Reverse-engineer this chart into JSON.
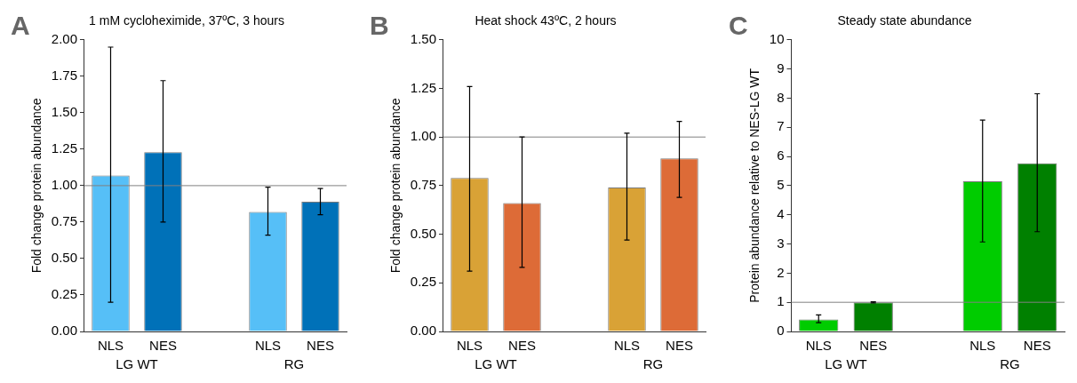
{
  "chart_data": [
    {
      "type": "bar",
      "title": "1 mM cycloheximide, 37ºC, 3 hours",
      "ylabel": "Fold change protein abundance",
      "categories": [
        "NLS",
        "NES",
        null,
        "NLS",
        "NES"
      ],
      "values": [
        1.07,
        1.23,
        null,
        0.82,
        0.89
      ],
      "colors": [
        "#56bff7",
        "#0071b8",
        null,
        "#56bff7",
        "#0071b8"
      ],
      "errors": [
        [
          0.2,
          1.95
        ],
        [
          0.75,
          1.72
        ],
        null,
        [
          0.66,
          0.99
        ],
        [
          0.8,
          0.98
        ]
      ],
      "ylim": [
        0,
        2
      ],
      "yticks": [
        {
          "value": 0,
          "label": "0.00"
        },
        {
          "value": 0.25,
          "label": "0.25"
        },
        {
          "value": 0.5,
          "label": "0.50"
        },
        {
          "value": 0.75,
          "label": "0.75"
        },
        {
          "value": 1,
          "label": "1.00"
        },
        {
          "value": 1.25,
          "label": "1.25"
        },
        {
          "value": 1.5,
          "label": "1.50"
        },
        {
          "value": 1.75,
          "label": "1.75"
        },
        {
          "value": 2,
          "label": "2.00"
        }
      ],
      "ref_lines": [
        {
          "axis": "y",
          "value": 1,
          "color": "#808080"
        }
      ],
      "annotations": [
        "A",
        "LG WT",
        "RG"
      ],
      "grid": false,
      "legend": false
    },
    {
      "type": "bar",
      "title": "Heat shock 43ºC, 2 hours",
      "ylabel": "Fold change protein abundance",
      "categories": [
        "NLS",
        "NES",
        null,
        "NLS",
        "NES"
      ],
      "values": [
        0.79,
        0.66,
        null,
        0.74,
        0.89
      ],
      "colors": [
        "#d9a236",
        "#dd6b37",
        null,
        "#d9a236",
        "#dd6b37"
      ],
      "errors": [
        [
          0.31,
          1.26
        ],
        [
          0.33,
          1.0
        ],
        null,
        [
          0.47,
          1.02
        ],
        [
          0.69,
          1.08
        ]
      ],
      "ylim": [
        0,
        1.5
      ],
      "yticks": [
        {
          "value": 0,
          "label": "0.00"
        },
        {
          "value": 0.25,
          "label": "0.25"
        },
        {
          "value": 0.5,
          "label": "0.50"
        },
        {
          "value": 0.75,
          "label": "0.75"
        },
        {
          "value": 1,
          "label": "1.00"
        },
        {
          "value": 1.25,
          "label": "1.25"
        },
        {
          "value": 1.5,
          "label": "1.50"
        }
      ],
      "ref_lines": [
        {
          "axis": "y",
          "value": 1,
          "color": "#808080"
        }
      ],
      "annotations": [
        "B",
        "LG WT",
        "RG"
      ],
      "grid": false,
      "legend": false
    },
    {
      "type": "bar",
      "title": "Steady state abundance",
      "ylabel": "Protein abundance relative to NES-LG WT",
      "categories": [
        "NLS",
        "NES",
        null,
        "NLS",
        "NES"
      ],
      "values": [
        0.41,
        1.0,
        null,
        5.15,
        5.77
      ],
      "colors": [
        "#00cc00",
        "#008000",
        null,
        "#00cc00",
        "#008000"
      ],
      "errors": [
        [
          0.3,
          0.57
        ],
        [
          0.98,
          1.02
        ],
        null,
        [
          3.07,
          7.25
        ],
        [
          3.42,
          8.15
        ]
      ],
      "ylim": [
        0,
        10
      ],
      "yticks": [
        0,
        1,
        2,
        3,
        4,
        5,
        6,
        7,
        8,
        9,
        10
      ],
      "ref_lines": [
        {
          "axis": "y",
          "value": 1,
          "color": "#808080"
        }
      ],
      "annotations": [
        "C",
        "LG WT",
        "RG"
      ],
      "grid": false,
      "legend": false
    }
  ]
}
